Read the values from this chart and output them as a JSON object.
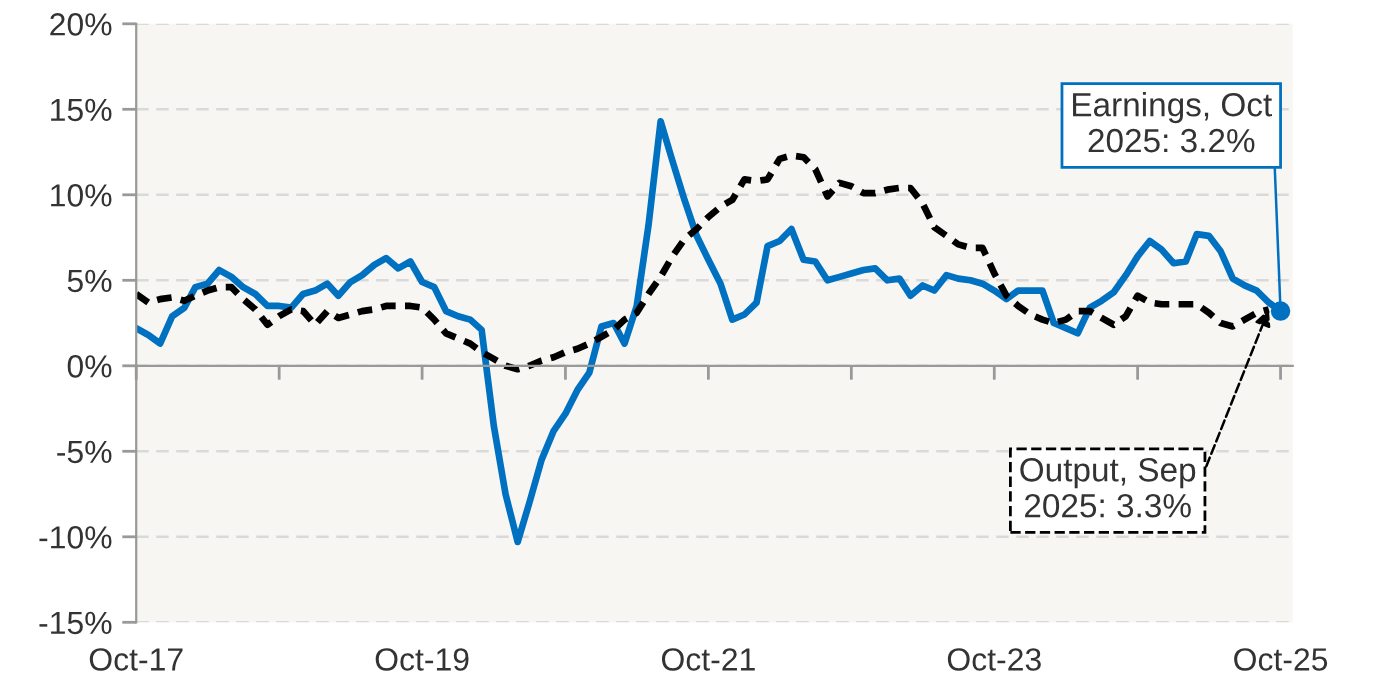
{
  "chart_data": {
    "type": "line",
    "x": [
      "2017-10",
      "2017-11",
      "2017-12",
      "2018-01",
      "2018-02",
      "2018-03",
      "2018-04",
      "2018-05",
      "2018-06",
      "2018-07",
      "2018-08",
      "2018-09",
      "2018-10",
      "2018-11",
      "2018-12",
      "2019-01",
      "2019-02",
      "2019-03",
      "2019-04",
      "2019-05",
      "2019-06",
      "2019-07",
      "2019-08",
      "2019-09",
      "2019-10",
      "2019-11",
      "2019-12",
      "2020-01",
      "2020-02",
      "2020-03",
      "2020-04",
      "2020-05",
      "2020-06",
      "2020-07",
      "2020-08",
      "2020-09",
      "2020-10",
      "2020-11",
      "2020-12",
      "2021-01",
      "2021-02",
      "2021-03",
      "2021-04",
      "2021-05",
      "2021-06",
      "2021-07",
      "2021-08",
      "2021-09",
      "2021-10",
      "2021-11",
      "2021-12",
      "2022-01",
      "2022-02",
      "2022-03",
      "2022-04",
      "2022-05",
      "2022-06",
      "2022-07",
      "2022-08",
      "2022-09",
      "2022-10",
      "2022-11",
      "2022-12",
      "2023-01",
      "2023-02",
      "2023-03",
      "2023-04",
      "2023-05",
      "2023-06",
      "2023-07",
      "2023-08",
      "2023-09",
      "2023-10",
      "2023-11",
      "2023-12",
      "2024-01",
      "2024-02",
      "2024-03",
      "2024-04",
      "2024-05",
      "2024-06",
      "2024-07",
      "2024-08",
      "2024-09",
      "2024-10",
      "2024-11",
      "2024-12",
      "2025-01",
      "2025-02",
      "2025-03",
      "2025-04",
      "2025-05",
      "2025-06",
      "2025-07",
      "2025-08",
      "2025-09",
      "2025-10"
    ],
    "series": [
      {
        "color": "#0070c0",
        "line_style": "solid",
        "values": [
          2.2,
          1.8,
          1.3,
          2.9,
          3.4,
          4.6,
          4.8,
          5.6,
          5.2,
          4.6,
          4.2,
          3.5,
          3.5,
          3.4,
          4.2,
          4.4,
          4.8,
          4.1,
          4.9,
          5.3,
          5.9,
          6.3,
          5.7,
          6.1,
          4.9,
          4.6,
          3.2,
          2.9,
          2.7,
          2.1,
          -3.5,
          -7.5,
          -10.3,
          -8.0,
          -5.5,
          -3.8,
          -2.8,
          -1.4,
          -0.4,
          2.3,
          2.5,
          1.3,
          3.5,
          8.2,
          14.3,
          12.0,
          9.7,
          7.6,
          6.2,
          4.8,
          2.7,
          3.0,
          3.7,
          7.0,
          7.3,
          8.0,
          6.2,
          6.1,
          5.0,
          5.2,
          5.4,
          5.6,
          5.7,
          5.0,
          5.1,
          4.1,
          4.7,
          4.4,
          5.3,
          5.1,
          5.0,
          4.8,
          4.4,
          3.9,
          4.4,
          4.4,
          4.4,
          2.5,
          2.2,
          1.9,
          3.4,
          3.8,
          4.3,
          5.3,
          6.4,
          7.3,
          6.8,
          6.0,
          6.1,
          7.7,
          7.6,
          6.7,
          5.1,
          4.7,
          4.4,
          3.7,
          3.2
        ]
      },
      {
        "color": "#000000",
        "line_style": "dashed",
        "values": [
          4.2,
          3.7,
          3.9,
          4.0,
          3.8,
          4.1,
          4.4,
          4.6,
          4.6,
          3.9,
          3.3,
          2.4,
          2.9,
          3.3,
          3.2,
          2.4,
          3.2,
          2.8,
          3.0,
          3.2,
          3.3,
          3.5,
          3.5,
          3.5,
          3.4,
          2.7,
          1.9,
          1.6,
          1.3,
          0.8,
          0.4,
          0.0,
          -0.2,
          0.0,
          0.3,
          0.5,
          0.8,
          1.0,
          1.3,
          1.7,
          2.1,
          2.7,
          3.1,
          4.2,
          5.2,
          6.4,
          7.4,
          8.0,
          8.7,
          9.3,
          9.7,
          10.9,
          10.8,
          10.9,
          12.1,
          12.3,
          12.2,
          11.5,
          9.9,
          10.7,
          10.5,
          10.1,
          10.1,
          10.3,
          10.4,
          10.4,
          9.5,
          8.1,
          7.6,
          7.1,
          6.9,
          6.9,
          5.4,
          4.1,
          3.5,
          3.0,
          2.7,
          2.5,
          2.7,
          3.2,
          3.2,
          2.8,
          2.4,
          2.9,
          4.1,
          3.7,
          3.6,
          3.6,
          3.6,
          3.6,
          3.1,
          2.5,
          2.3,
          2.7,
          3.1,
          3.3,
          null
        ]
      }
    ],
    "xlim": [
      "2017-10",
      "2025-11"
    ],
    "xticks": [
      {
        "value": "2017-10",
        "label": "Oct-17"
      },
      {
        "value": "2018-10",
        "label": null
      },
      {
        "value": "2019-10",
        "label": "Oct-19"
      },
      {
        "value": "2020-10",
        "label": null
      },
      {
        "value": "2021-10",
        "label": "Oct-21"
      },
      {
        "value": "2022-10",
        "label": null
      },
      {
        "value": "2023-10",
        "label": "Oct-23"
      },
      {
        "value": "2024-10",
        "label": null
      },
      {
        "value": "2025-10",
        "label": "Oct-25"
      }
    ],
    "ylim": [
      -15,
      20
    ],
    "yticks": [
      {
        "value": -15,
        "label": "-15%"
      },
      {
        "value": -10,
        "label": "-10%"
      },
      {
        "value": -5,
        "label": "-5%"
      },
      {
        "value": 0,
        "label": "0%"
      },
      {
        "value": 5,
        "label": "5%"
      },
      {
        "value": 10,
        "label": "10%"
      },
      {
        "value": 15,
        "label": "15%"
      },
      {
        "value": 20,
        "label": "20%"
      }
    ],
    "grid": "y",
    "legend": false,
    "annotations": [
      {
        "text": "Earnings, Oct\n2025: 3.2%",
        "x": "2025-10",
        "y": 3.2
      },
      {
        "text": "Output, Sep\n2025: 3.3%",
        "x": "2025-09",
        "y": 3.3
      }
    ]
  }
}
